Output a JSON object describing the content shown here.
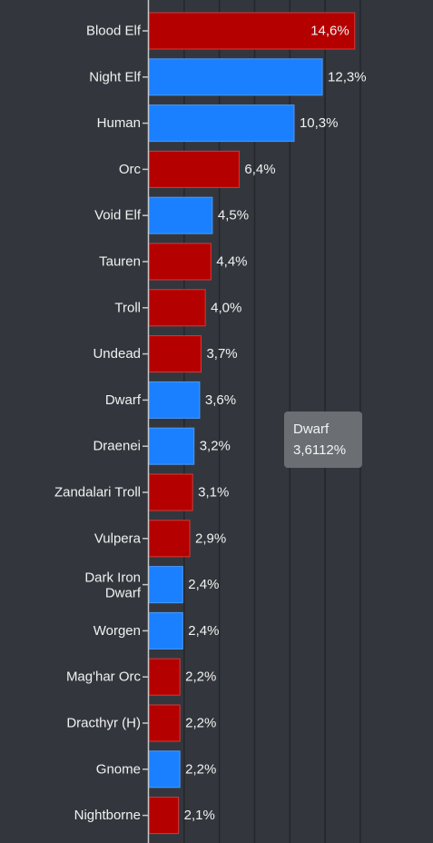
{
  "chart_data": {
    "type": "bar",
    "orientation": "horizontal",
    "categories": [
      "Blood Elf",
      "Night Elf",
      "Human",
      "Orc",
      "Void Elf",
      "Tauren",
      "Troll",
      "Undead",
      "Dwarf",
      "Draenei",
      "Zandalari Troll",
      "Vulpera",
      "Dark Iron Dwarf",
      "Worgen",
      "Mag'har Orc",
      "Dracthyr (H)",
      "Gnome",
      "Nightborne"
    ],
    "values": [
      14.6,
      12.3,
      10.3,
      6.4,
      4.5,
      4.4,
      4.0,
      3.7,
      3.6,
      3.2,
      3.1,
      2.9,
      2.4,
      2.4,
      2.2,
      2.2,
      2.2,
      2.1
    ],
    "value_labels": [
      "14,6%",
      "12,3%",
      "10,3%",
      "6,4%",
      "4,5%",
      "4,4%",
      "4,0%",
      "3,7%",
      "3,6%",
      "3,2%",
      "3,1%",
      "2,9%",
      "2,4%",
      "2,4%",
      "2,2%",
      "2,2%",
      "2,2%",
      "2,1%"
    ],
    "factions": [
      "horde",
      "alliance",
      "alliance",
      "horde",
      "alliance",
      "horde",
      "horde",
      "horde",
      "alliance",
      "alliance",
      "horde",
      "horde",
      "alliance",
      "alliance",
      "horde",
      "horde",
      "alliance",
      "horde"
    ],
    "colors": {
      "horde": "#b50000",
      "alliance": "#1a80ff",
      "background": "#33373d",
      "grid": "#23262b",
      "axis": "#c8c8c8"
    },
    "xlim": [
      0,
      15.5
    ],
    "grid": true,
    "title": "",
    "xlabel": "",
    "ylabel": ""
  },
  "tooltip": {
    "title": "Dwarf",
    "value": "3,6112%"
  }
}
